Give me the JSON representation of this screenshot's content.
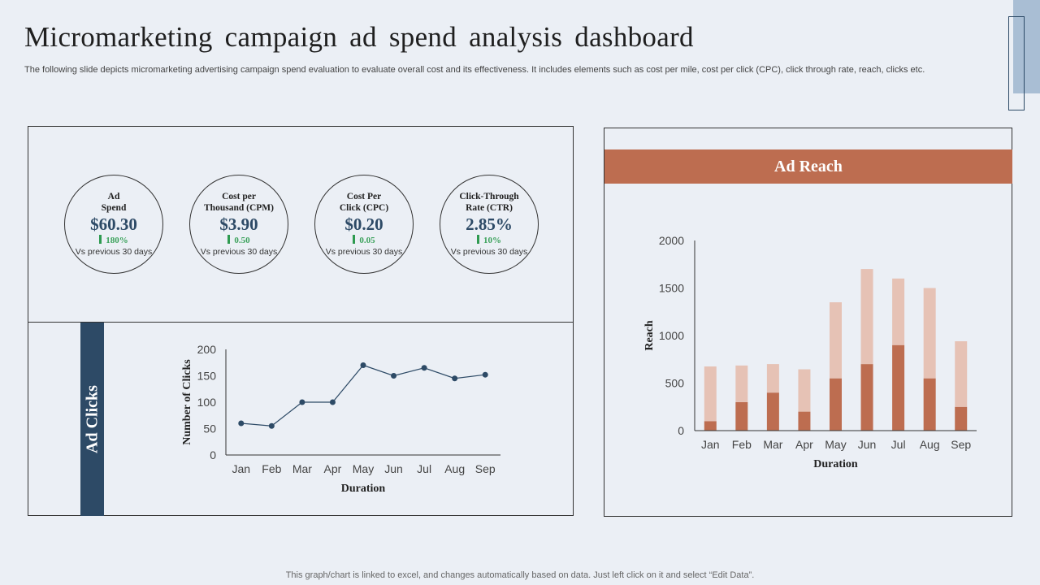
{
  "header": {
    "title": "Micromarketing campaign ad spend analysis dashboard",
    "subtitle": "The following slide depicts micromarketing advertising campaign spend evaluation to evaluate overall cost and its effectiveness. It includes elements such as cost per mile, cost per click (CPC), click through rate, reach, clicks etc."
  },
  "kpis": [
    {
      "label_line1": "Ad",
      "label_line2": "Spend",
      "value": "$60.30",
      "delta": "180%",
      "compare": "Vs previous 30 days"
    },
    {
      "label_line1": "Cost per",
      "label_line2": "Thousand (CPM)",
      "value": "$3.90",
      "delta": "0.50",
      "compare": "Vs previous 30 days"
    },
    {
      "label_line1": "Cost Per",
      "label_line2": "Click (CPC)",
      "value": "$0.20",
      "delta": "0.05",
      "compare": "Vs previous 30 days"
    },
    {
      "label_line1": "Click-Through",
      "label_line2": "Rate (CTR)",
      "value": "2.85%",
      "delta": "10%",
      "compare": "Vs previous 30 days"
    }
  ],
  "colors": {
    "navy": "#2d4a66",
    "reach_dark": "#bd6d50",
    "reach_light": "#e6c2b5",
    "positive_green": "#3aa15a"
  },
  "clicks_panel": {
    "label": "Ad Clicks"
  },
  "reach_panel": {
    "label": "Ad Reach"
  },
  "chart_data": [
    {
      "type": "line",
      "categories": [
        "Jan",
        "Feb",
        "Mar",
        "Apr",
        "May",
        "Jun",
        "Jul",
        "Aug",
        "Sep"
      ],
      "values": [
        60,
        55,
        100,
        100,
        170,
        150,
        165,
        145,
        152
      ],
      "xlabel": "Duration",
      "ylabel": "Number of Clicks",
      "ylim": [
        0,
        200
      ],
      "yticks": [
        0,
        50,
        100,
        150,
        200
      ],
      "grid": false
    },
    {
      "type": "bar",
      "stacked": true,
      "categories": [
        "Jan",
        "Feb",
        "Mar",
        "Apr",
        "May",
        "Jun",
        "Jul",
        "Aug",
        "Sep"
      ],
      "series": [
        {
          "values": [
            100,
            300,
            400,
            200,
            550,
            700,
            900,
            550,
            250
          ]
        },
        {
          "values": [
            575,
            385,
            300,
            445,
            800,
            1000,
            700,
            950,
            690
          ]
        }
      ],
      "xlabel": "Duration",
      "ylabel": "Reach",
      "ylim": [
        0,
        2000
      ],
      "yticks": [
        0,
        500,
        1000,
        1500,
        2000
      ],
      "grid": false
    }
  ],
  "footer": {
    "note": "This graph/chart is linked to excel,  and changes automatically based on data. Just left click on it and select “Edit Data”."
  }
}
